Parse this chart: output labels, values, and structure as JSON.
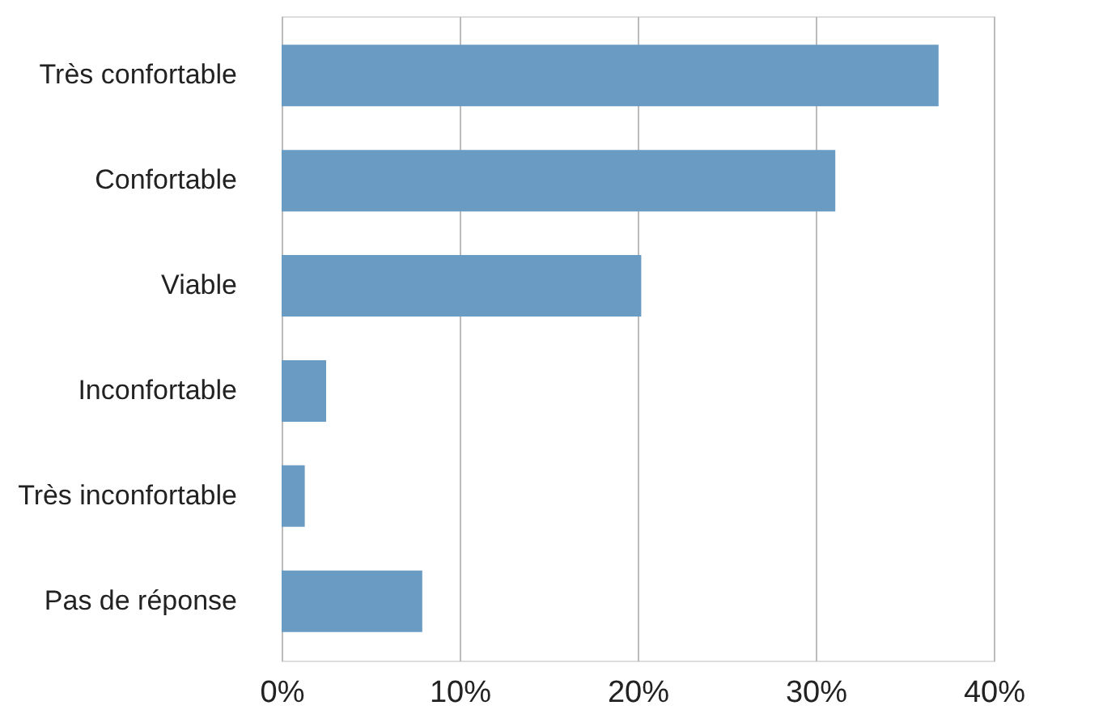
{
  "chart_data": {
    "type": "bar",
    "orientation": "horizontal",
    "categories": [
      "Très confortable",
      "Confortable",
      "Viable",
      "Inconfortable",
      "Très inconfortable",
      "Pas de réponse"
    ],
    "values": [
      36.9,
      31.1,
      20.2,
      2.5,
      1.3,
      7.9
    ],
    "color": "#6a9bc3",
    "xlim": [
      0,
      40
    ],
    "xticks": [
      {
        "value": 0,
        "label": "0%"
      },
      {
        "value": 10,
        "label": "10%"
      },
      {
        "value": 20,
        "label": "20%"
      },
      {
        "value": 30,
        "label": "30%"
      },
      {
        "value": 40,
        "label": "40%"
      }
    ],
    "grid": "x"
  }
}
